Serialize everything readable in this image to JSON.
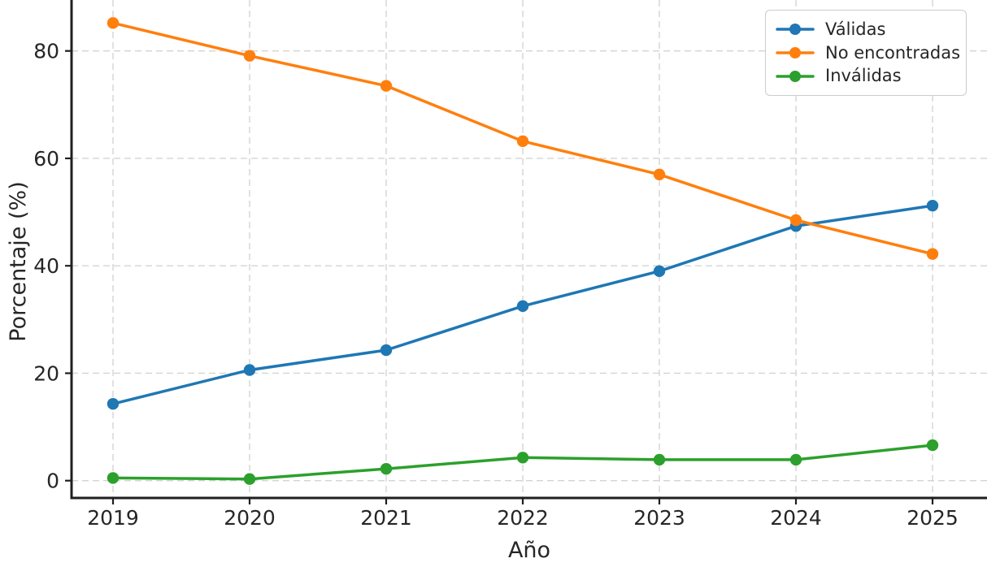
{
  "chart_data": {
    "type": "line",
    "title": "",
    "xlabel": "Año",
    "ylabel": "Porcentaje (%)",
    "x": [
      2019,
      2020,
      2021,
      2022,
      2023,
      2024,
      2025
    ],
    "x_tick_labels": [
      "2019",
      "2020",
      "2021",
      "2022",
      "2023",
      "2024",
      "2025"
    ],
    "y_ticks": [
      0,
      20,
      40,
      60,
      80
    ],
    "y_tick_labels": [
      "0",
      "20",
      "40",
      "60",
      "80"
    ],
    "ylim": [
      -3.2,
      89.5
    ],
    "xlim": [
      2018.7,
      2025.4
    ],
    "grid": "both-dashed",
    "legend_position": "upper right",
    "series": [
      {
        "name": "Válidas",
        "color": "#1f77b4",
        "values": [
          14.3,
          20.6,
          24.3,
          32.5,
          39.0,
          47.4,
          51.2
        ]
      },
      {
        "name": "No encontradas",
        "color": "#ff7f0e",
        "values": [
          85.2,
          79.1,
          73.5,
          63.2,
          57.0,
          48.5,
          42.2
        ]
      },
      {
        "name": "Inválidas",
        "color": "#2ca02c",
        "values": [
          0.5,
          0.3,
          2.2,
          4.3,
          3.9,
          3.9,
          6.6
        ]
      }
    ]
  },
  "style": {
    "text_color": "#262626",
    "grid_color": "#d4d4d4",
    "spine_color": "#1f1f1f",
    "legend_border_color": "#cccccc",
    "background": "#ffffff"
  }
}
